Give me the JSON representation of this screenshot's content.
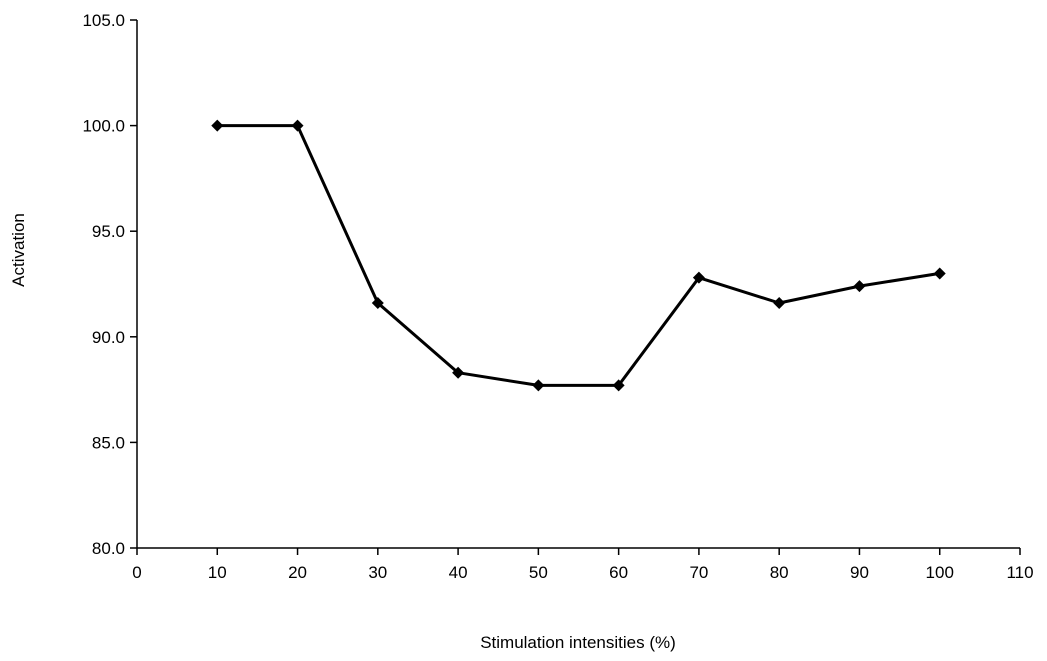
{
  "chart_data": {
    "type": "line",
    "title": "",
    "xlabel": "Stimulation intensities (%)",
    "ylabel": "Activation",
    "xlim": [
      0,
      110
    ],
    "ylim": [
      80,
      105
    ],
    "xticks": [
      0,
      10,
      20,
      30,
      40,
      50,
      60,
      70,
      80,
      90,
      100,
      110
    ],
    "yticks": [
      80.0,
      85.0,
      90.0,
      95.0,
      100.0,
      105.0
    ],
    "ytick_labels": [
      "80.0",
      "85.0",
      "90.0",
      "95.0",
      "100.0",
      "105.0"
    ],
    "grid": false,
    "legend": "none",
    "marker": "diamond",
    "series": [
      {
        "color": "#000000",
        "x": [
          10,
          20,
          30,
          40,
          50,
          60,
          70,
          80,
          90,
          100
        ],
        "y": [
          100.0,
          100.0,
          91.6,
          88.3,
          87.7,
          87.7,
          92.8,
          91.6,
          92.4,
          93.0
        ]
      }
    ]
  }
}
